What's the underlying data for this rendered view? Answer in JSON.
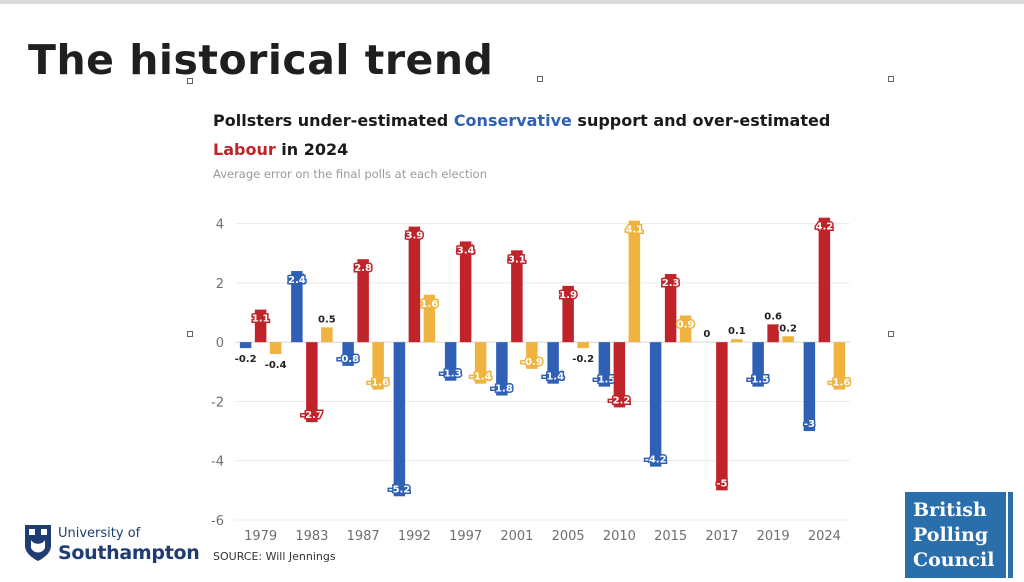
{
  "slide": {
    "title": "The historical trend"
  },
  "chart_data": {
    "type": "bar",
    "title": {
      "prefix": "Pollsters under-estimated ",
      "con": "Conservative",
      "middle": " support and over-estimated ",
      "lab": "Labour",
      "suffix": " in 2024"
    },
    "subtitle": "Average error on the final polls at each election",
    "xlabel": "",
    "ylabel": "",
    "ylim": [
      -6,
      5
    ],
    "yticks": [
      4,
      2,
      0,
      -2,
      -4,
      -6
    ],
    "grid": true,
    "categories": [
      "1979",
      "1983",
      "1987",
      "1992",
      "1997",
      "2001",
      "2005",
      "2010",
      "2015",
      "2017",
      "2019",
      "2024"
    ],
    "series": [
      {
        "key": "con",
        "color": "#2f60b6",
        "values": [
          -0.2,
          2.4,
          -0.8,
          -5.2,
          -1.3,
          -1.8,
          -1.4,
          -1.5,
          -4.2,
          0,
          -1.5,
          -3
        ]
      },
      {
        "key": "lab",
        "color": "#c0232a",
        "values": [
          1.1,
          -2.7,
          2.8,
          3.9,
          3.4,
          3.1,
          1.9,
          -2.2,
          2.3,
          -5,
          0.6,
          4.2
        ]
      },
      {
        "key": "other",
        "color": "#f0b33f",
        "values": [
          -0.4,
          0.5,
          -1.6,
          1.6,
          -1.4,
          -0.9,
          -0.2,
          4.1,
          0.9,
          0.1,
          0.2,
          -1.6
        ]
      }
    ],
    "source": "SOURCE: Will Jennings"
  },
  "logos": {
    "university_line1": "University of",
    "university_line2": "Southampton",
    "bpc": [
      "British",
      "Polling",
      "Council"
    ]
  }
}
